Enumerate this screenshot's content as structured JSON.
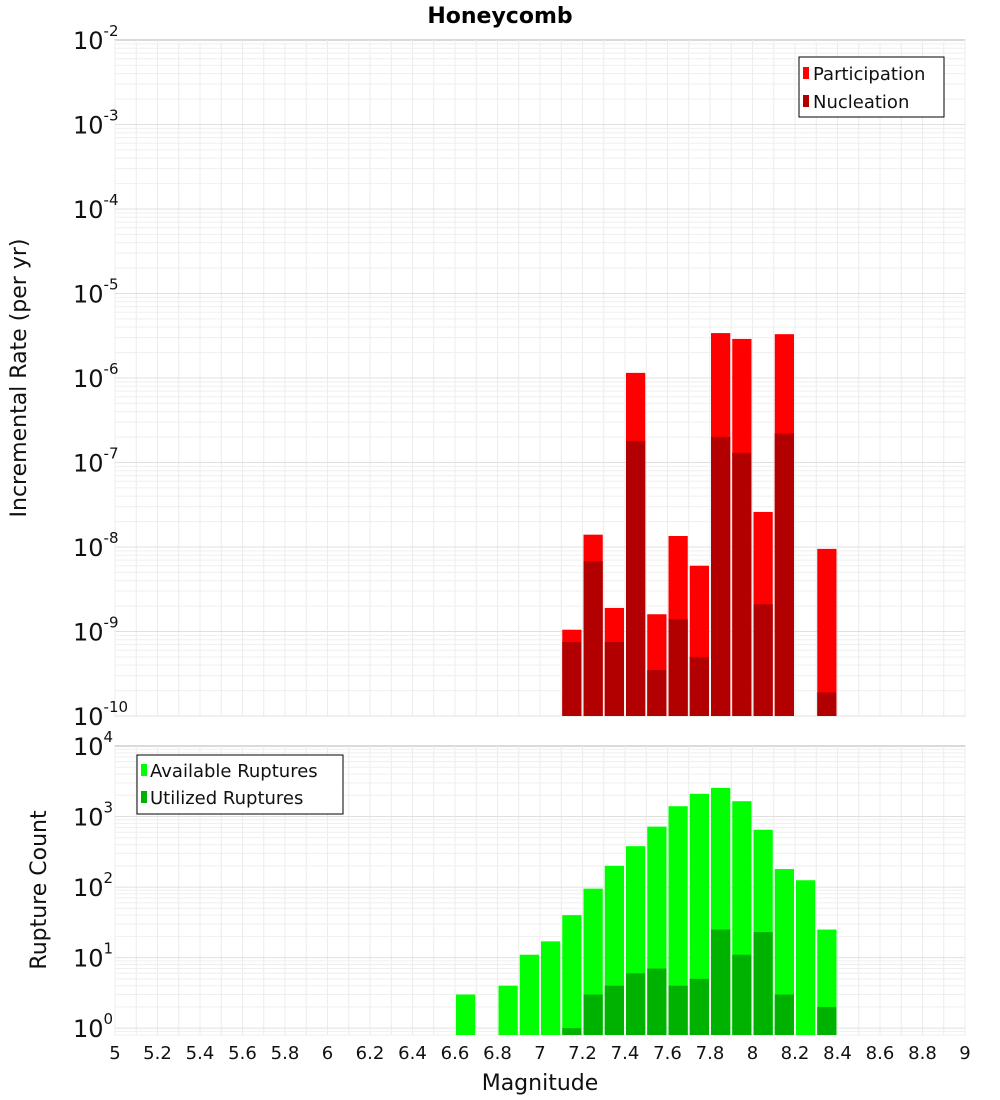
{
  "chart_data": [
    {
      "type": "bar",
      "title": "Honeycomb",
      "xlabel": "",
      "ylabel": "Incremental Rate (per yr)",
      "xlim": [
        5,
        9
      ],
      "ylim": [
        1e-10,
        0.01
      ],
      "yscale": "log",
      "ytick_exponents": [
        "-10",
        "-9",
        "-8",
        "-7",
        "-6",
        "-5",
        "-4",
        "-3",
        "-2"
      ],
      "grid": true,
      "legend_position": "top-right",
      "bar_width": 0.1,
      "x": [
        7.15,
        7.25,
        7.35,
        7.45,
        7.55,
        7.65,
        7.75,
        7.85,
        7.95,
        8.05,
        8.15,
        8.35
      ],
      "series": [
        {
          "name": "Participation",
          "color": "#ff0000",
          "values": [
            1.05e-09,
            1.4e-08,
            1.9e-09,
            1.15e-06,
            1.6e-09,
            1.35e-08,
            6e-09,
            3.4e-06,
            2.9e-06,
            2.6e-08,
            3.3e-06,
            9.5e-09
          ]
        },
        {
          "name": "Nucleation",
          "color": "#b20000",
          "values": [
            7.5e-10,
            6.8e-09,
            7.5e-10,
            1.8e-07,
            3.5e-10,
            1.4e-09,
            5e-10,
            2e-07,
            1.3e-07,
            2.1e-09,
            2.2e-07,
            1.9e-10
          ]
        }
      ]
    },
    {
      "type": "bar",
      "xlabel": "Magnitude",
      "ylabel": "Rupture Count",
      "xlim": [
        5,
        9
      ],
      "ylim": [
        0.8,
        10000
      ],
      "yscale": "log",
      "ytick_exponents": [
        "0",
        "1",
        "2",
        "3",
        "4"
      ],
      "xticks": [
        "5",
        "5.2",
        "5.4",
        "5.6",
        "5.8",
        "6",
        "6.2",
        "6.4",
        "6.6",
        "6.8",
        "7",
        "7.2",
        "7.4",
        "7.6",
        "7.8",
        "8",
        "8.2",
        "8.4",
        "8.6",
        "8.8",
        "9"
      ],
      "grid": true,
      "legend_position": "top-left",
      "bar_width": 0.1,
      "x": [
        6.65,
        6.85,
        6.95,
        7.05,
        7.15,
        7.25,
        7.35,
        7.45,
        7.55,
        7.65,
        7.75,
        7.85,
        7.95,
        8.05,
        8.15,
        8.25,
        8.35
      ],
      "series": [
        {
          "name": "Available Ruptures",
          "color": "#00ff00",
          "values": [
            3,
            4,
            11,
            17,
            40,
            95,
            200,
            380,
            720,
            1400,
            2100,
            2550,
            1650,
            650,
            180,
            125,
            25
          ]
        },
        {
          "name": "Utilized Ruptures",
          "color": "#00b200",
          "values": [
            0,
            0,
            0,
            0,
            1,
            3,
            4,
            6,
            7,
            4,
            5,
            25,
            11,
            23,
            3,
            0,
            2
          ]
        }
      ]
    }
  ]
}
